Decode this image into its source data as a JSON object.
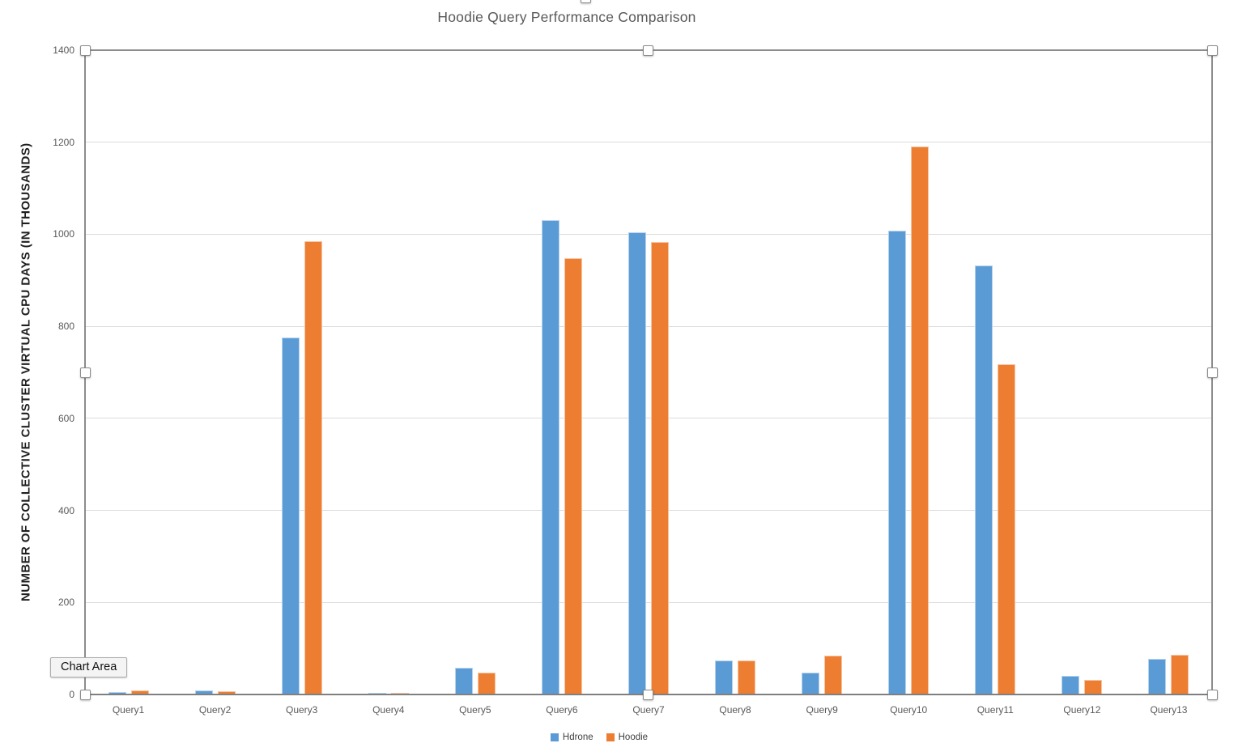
{
  "tooltip": {
    "text": "Chart Area"
  },
  "colors": {
    "series_blue": "#5B9BD5",
    "series_orange": "#ED7D31",
    "gridline": "#DCDCDC",
    "axis_line": "#8C8C8C",
    "bottom_axis_line": "#7F7F7F",
    "title_text": "#595959",
    "tick_text": "#595959",
    "ylabel_text": "#1F1F1F"
  },
  "chart_data": {
    "type": "bar",
    "title": "Hoodie Query Performance Comparison",
    "xlabel": "",
    "ylabel": "NUMBER OF COLLECTIVE CLUSTER VIRTUAL CPU DAYS (IN THOUSANDS)",
    "categories": [
      "Query1",
      "Query2",
      "Query3",
      "Query4",
      "Query5",
      "Query6",
      "Query7",
      "Query8",
      "Query9",
      "Query10",
      "Query11",
      "Query12",
      "Query13"
    ],
    "series": [
      {
        "name": "Hdrone",
        "color": "#5B9BD5",
        "values": [
          5,
          9,
          775,
          4,
          58,
          1030,
          1005,
          73,
          47,
          1008,
          933,
          40,
          78
        ]
      },
      {
        "name": "Hoodie",
        "color": "#ED7D31",
        "values": [
          8,
          7,
          985,
          3,
          48,
          948,
          983,
          73,
          85,
          1191,
          717,
          32,
          87
        ]
      }
    ],
    "ylim": [
      0,
      1400
    ],
    "yticks": [
      0,
      200,
      400,
      600,
      800,
      1000,
      1200,
      1400
    ],
    "grid": true,
    "legend_position": "bottom"
  }
}
